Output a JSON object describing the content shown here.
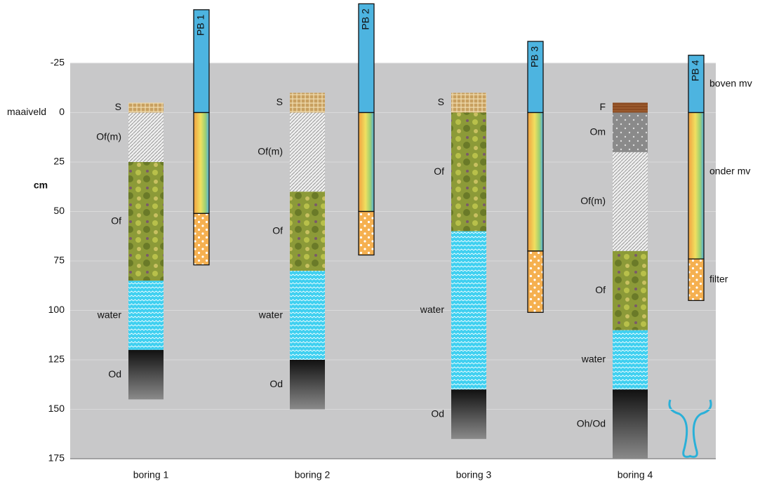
{
  "chart_data": {
    "type": "soil-profile",
    "ylim": [
      -25,
      175
    ],
    "yticks": [
      -25,
      0,
      25,
      50,
      75,
      100,
      125,
      150,
      175
    ],
    "invert_y": true,
    "grid": true,
    "y_label": "cm",
    "ground_label": "maaiveld",
    "categories": [
      "boring 1",
      "boring 2",
      "boring 3",
      "boring 4"
    ],
    "borings": [
      {
        "layers": [
          {
            "name": "S",
            "top": -5,
            "bottom": 0,
            "color": "#c8a060"
          },
          {
            "name": "Of(m)",
            "top": 0,
            "bottom": 25,
            "color": "#e0e0e0"
          },
          {
            "name": "Of",
            "top": 25,
            "bottom": 85,
            "color": "#8c9a38"
          },
          {
            "name": "water",
            "top": 85,
            "bottom": 120,
            "color": "#40d0f0"
          },
          {
            "name": "Od",
            "top": 120,
            "bottom": 145,
            "color": "#303030"
          }
        ]
      },
      {
        "layers": [
          {
            "name": "S",
            "top": -10,
            "bottom": 0,
            "color": "#c8a060"
          },
          {
            "name": "Of(m)",
            "top": 0,
            "bottom": 40,
            "color": "#e0e0e0"
          },
          {
            "name": "Of",
            "top": 40,
            "bottom": 80,
            "color": "#8c9a38"
          },
          {
            "name": "water",
            "top": 80,
            "bottom": 125,
            "color": "#40d0f0"
          },
          {
            "name": "Od",
            "top": 125,
            "bottom": 150,
            "color": "#303030"
          }
        ]
      },
      {
        "layers": [
          {
            "name": "S",
            "top": -10,
            "bottom": 0,
            "color": "#c8a060"
          },
          {
            "name": "Of",
            "top": 0,
            "bottom": 60,
            "color": "#8c9a38"
          },
          {
            "name": "water",
            "top": 60,
            "bottom": 140,
            "color": "#40d0f0"
          },
          {
            "name": "Od",
            "top": 140,
            "bottom": 165,
            "color": "#303030"
          }
        ]
      },
      {
        "layers": [
          {
            "name": "F",
            "top": -5,
            "bottom": 0,
            "color": "#8b4a20"
          },
          {
            "name": "Om",
            "top": 0,
            "bottom": 20,
            "color": "#8a8a8a"
          },
          {
            "name": "Of(m)",
            "top": 20,
            "bottom": 70,
            "color": "#e0e0e0"
          },
          {
            "name": "Of",
            "top": 70,
            "bottom": 110,
            "color": "#8c9a38"
          },
          {
            "name": "water",
            "top": 110,
            "bottom": 140,
            "color": "#40d0f0"
          },
          {
            "name": "Oh/Od",
            "top": 140,
            "bottom": 175,
            "color": "#303030"
          }
        ]
      }
    ],
    "tubes": [
      {
        "name": "PB 1",
        "top": -52,
        "filter_top": 51,
        "bottom": 77
      },
      {
        "name": "PB 2",
        "top": -55,
        "filter_top": 50,
        "bottom": 72
      },
      {
        "name": "PB 3",
        "top": -36,
        "filter_top": 70,
        "bottom": 101
      },
      {
        "name": "PB 4",
        "top": -29,
        "filter_top": 74,
        "bottom": 95
      }
    ],
    "legend": [
      {
        "label": "boven mv",
        "color": "#4db4e0"
      },
      {
        "label": "onder mv",
        "color": "#e8c060"
      },
      {
        "label": "filter",
        "color": "#f5b050"
      }
    ]
  }
}
